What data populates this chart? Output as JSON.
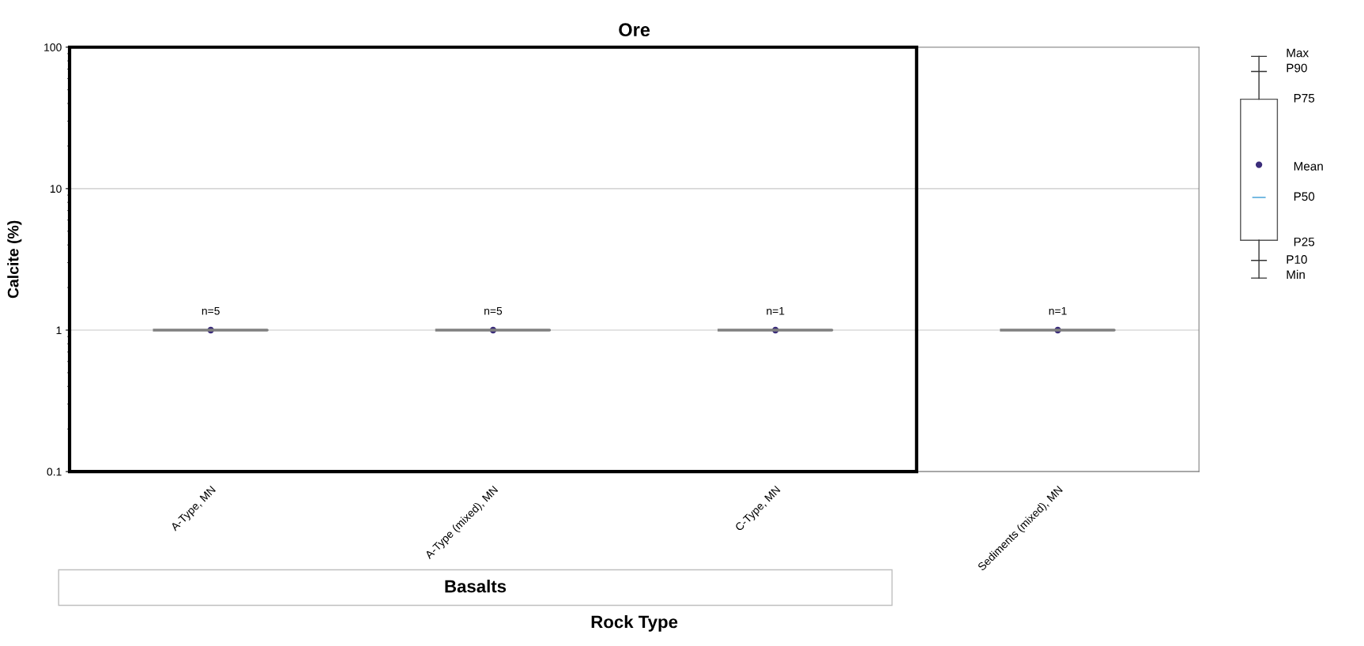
{
  "chart_data": {
    "type": "box",
    "title": "Ore",
    "xlabel": "Rock Type",
    "ylabel": "Calcite (%)",
    "categories": [
      "A-Type, MN",
      "A-Type (mixed), MN",
      "C-Type, MN",
      "Sediments (mixed), MN"
    ],
    "boxes": [
      {
        "low": 1,
        "q1": 1,
        "median": 1,
        "q3": 1,
        "high": 1,
        "mean": 1
      },
      {
        "low": 1,
        "q1": 1,
        "median": 1,
        "q3": 1,
        "high": 1,
        "mean": 1
      },
      {
        "low": 1,
        "q1": 1,
        "median": 1,
        "q3": 1,
        "high": 1,
        "mean": 1
      },
      {
        "low": 1,
        "q1": 1,
        "median": 1,
        "q3": 1,
        "high": 1,
        "mean": 1
      }
    ],
    "color": "#808080",
    "log": true,
    "ylim": [
      0.1,
      100
    ],
    "yticks": [
      0.1,
      1,
      10,
      100
    ],
    "grid": "y",
    "annotations": [
      "Basalts",
      "Max",
      "P90",
      "P75",
      "Mean",
      "P50",
      "P25",
      "P10",
      "Min",
      {
        "text": "n=5",
        "x": "A-Type, MN",
        "y": 1
      },
      {
        "text": "n=5",
        "x": "A-Type (mixed), MN",
        "y": 1
      },
      {
        "text": "n=1",
        "x": "C-Type, MN",
        "y": 1
      },
      {
        "text": "n=1",
        "x": "Sediments (mixed), MN",
        "y": 1
      }
    ]
  }
}
